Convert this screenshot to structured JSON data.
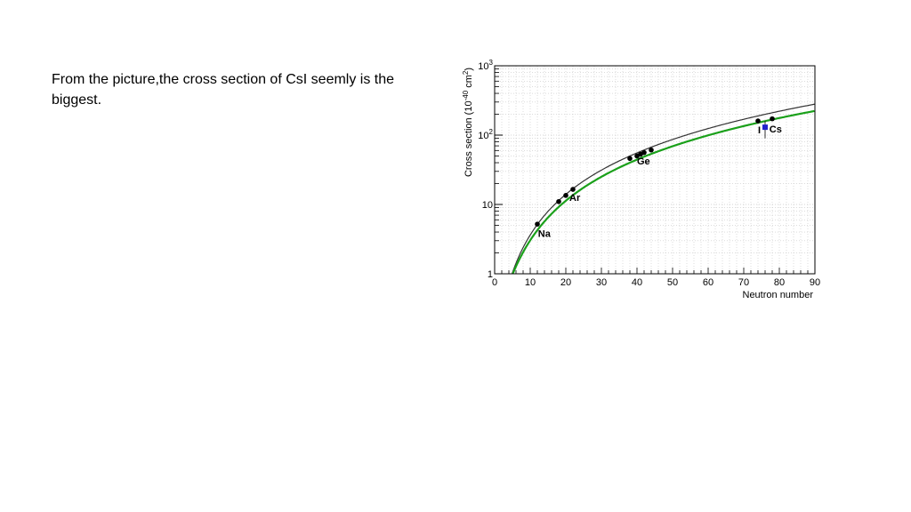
{
  "slide": {
    "text": "From the picture,the cross section of CsI seemly is the biggest."
  },
  "chart_data": {
    "type": "line",
    "xlabel": "Neutron number",
    "ylabel": "Cross section (10",
    "ylabel_sup1": "-40",
    "ylabel_mid": " cm",
    "ylabel_sup2": "2",
    "ylabel_end": ")",
    "xlim": [
      0,
      90
    ],
    "ylim": [
      1,
      1000
    ],
    "yscale": "log",
    "grid": true,
    "x_ticks": [
      0,
      10,
      20,
      30,
      40,
      50,
      60,
      70,
      80,
      90
    ],
    "y_ticks": [
      {
        "value": 1,
        "label": "1",
        "sup": ""
      },
      {
        "value": 10,
        "label": "10",
        "sup": ""
      },
      {
        "value": 100,
        "label": "10",
        "sup": "2"
      },
      {
        "value": 1000,
        "label": "10",
        "sup": "3"
      }
    ],
    "curves": [
      {
        "color": "#333333",
        "width": 1.2,
        "x0": 4.9,
        "scale": 0.0345,
        "power": 2
      },
      {
        "color": "#1aa01a",
        "width": 2.2,
        "x0": 5.1,
        "scale": 0.0275,
        "power": 2
      }
    ],
    "points": [
      {
        "x": 12,
        "y": 5.2
      },
      {
        "x": 18,
        "y": 11
      },
      {
        "x": 20,
        "y": 13.5
      },
      {
        "x": 22,
        "y": 16.5
      },
      {
        "x": 38,
        "y": 46
      },
      {
        "x": 40,
        "y": 50
      },
      {
        "x": 41,
        "y": 53
      },
      {
        "x": 42,
        "y": 56
      },
      {
        "x": 44,
        "y": 61
      },
      {
        "x": 74,
        "y": 160
      },
      {
        "x": 78,
        "y": 172
      }
    ],
    "measurement": {
      "x": 76,
      "y": 130,
      "err_low": 90,
      "err_high": 160,
      "color": "#2222cc"
    },
    "annotations": [
      {
        "text": "Na",
        "x": 12.2,
        "y": 3.4
      },
      {
        "text": "Ar",
        "x": 21.0,
        "y": 11.2
      },
      {
        "text": "Ge",
        "x": 40.0,
        "y": 38.0
      },
      {
        "text": "I",
        "x": 74.0,
        "y": 106
      },
      {
        "text": "Cs",
        "x": 77.2,
        "y": 110
      }
    ]
  }
}
